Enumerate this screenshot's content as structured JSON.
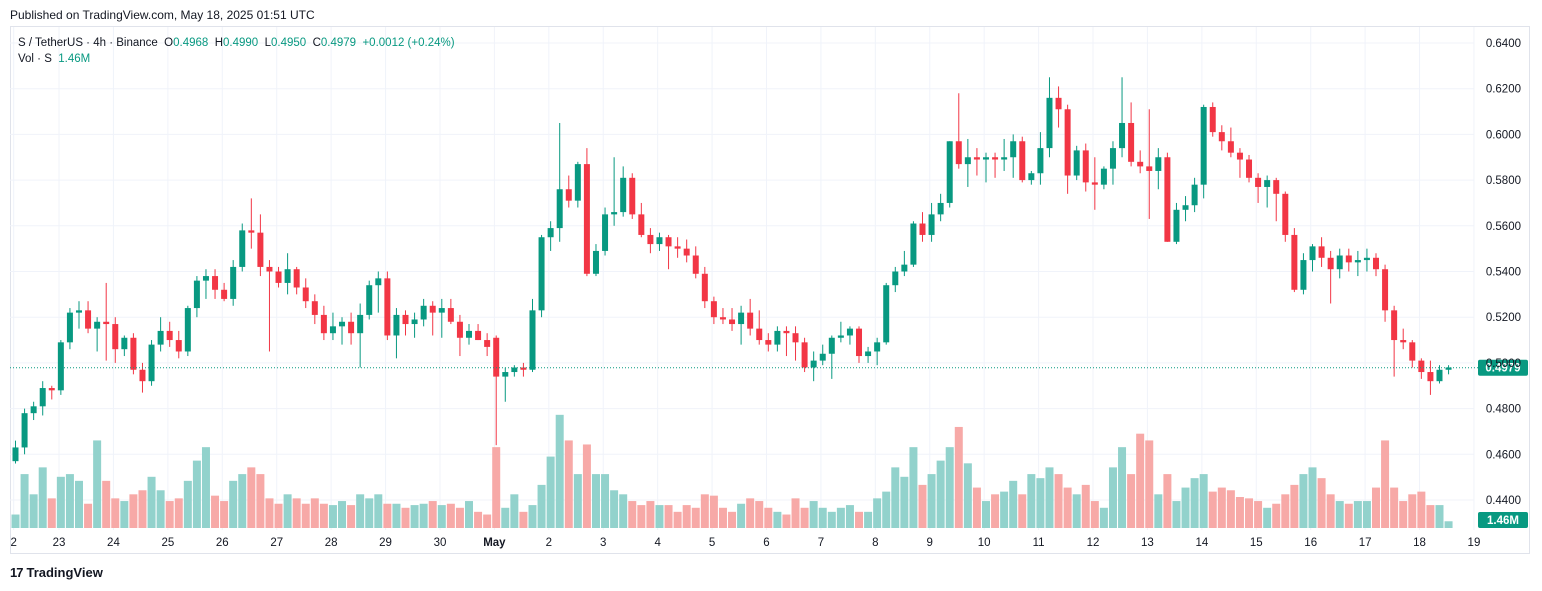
{
  "header": {
    "published": "Published on TradingView.com, May 18, 2025 01:51 UTC"
  },
  "legend": {
    "symbol": "S / TetherUS · 4h · Binance",
    "open_label": "O",
    "open": "0.4968",
    "high_label": "H",
    "high": "0.4990",
    "low_label": "L",
    "low": "0.4950",
    "close_label": "C",
    "close": "0.4979",
    "change": "+0.0012 (+0.24%)",
    "vol_label": "Vol · S",
    "vol_value": "1.46M"
  },
  "footer": {
    "brand": "TradingView",
    "logo_glyph": "17"
  },
  "colors": {
    "up": "#089981",
    "down": "#f23645",
    "vol_up": "#92d2cc",
    "vol_down": "#f7a9a7",
    "grid": "#f0f3fa"
  },
  "chart_data": {
    "type": "candlestick",
    "symbol": "S / TetherUS",
    "interval": "4h",
    "exchange": "Binance",
    "ylim": [
      0.4345,
      0.6445
    ],
    "y_ticks": [
      "0.6400",
      "0.6200",
      "0.6000",
      "0.5800",
      "0.5600",
      "0.5400",
      "0.5200",
      "0.5000",
      "0.4800",
      "0.4600",
      "0.4400"
    ],
    "x_ticks": [
      {
        "label": "2",
        "i": -0.2
      },
      {
        "label": "23",
        "i": 4.8
      },
      {
        "label": "24",
        "i": 10.8
      },
      {
        "label": "25",
        "i": 16.8
      },
      {
        "label": "26",
        "i": 22.8
      },
      {
        "label": "27",
        "i": 28.8
      },
      {
        "label": "28",
        "i": 34.8
      },
      {
        "label": "29",
        "i": 40.8
      },
      {
        "label": "30",
        "i": 46.8
      },
      {
        "label": "May",
        "i": 52.8
      },
      {
        "label": "2",
        "i": 58.8
      },
      {
        "label": "3",
        "i": 64.8
      },
      {
        "label": "4",
        "i": 70.8
      },
      {
        "label": "5",
        "i": 76.8
      },
      {
        "label": "6",
        "i": 82.8
      },
      {
        "label": "7",
        "i": 88.8
      },
      {
        "label": "8",
        "i": 94.8
      },
      {
        "label": "9",
        "i": 100.8
      },
      {
        "label": "10",
        "i": 106.8
      },
      {
        "label": "11",
        "i": 112.8
      },
      {
        "label": "12",
        "i": 118.8
      },
      {
        "label": "13",
        "i": 124.8
      },
      {
        "label": "14",
        "i": 130.8
      },
      {
        "label": "15",
        "i": 136.8
      },
      {
        "label": "16",
        "i": 142.8
      },
      {
        "label": "17",
        "i": 148.8
      },
      {
        "label": "18",
        "i": 154.8
      },
      {
        "label": "19",
        "i": 160.8
      }
    ],
    "current_price": "0.4979",
    "current_volume": "1.46M",
    "volume_max": 0.95,
    "candles": [
      [
        0.457,
        0.466,
        0.456,
        0.463,
        0.1
      ],
      [
        0.463,
        0.48,
        0.46,
        0.478,
        0.4
      ],
      [
        0.478,
        0.483,
        0.475,
        0.481,
        0.25
      ],
      [
        0.481,
        0.492,
        0.477,
        0.489,
        0.45
      ],
      [
        0.489,
        0.49,
        0.484,
        0.488,
        0.22
      ],
      [
        0.488,
        0.51,
        0.486,
        0.509,
        0.38
      ],
      [
        0.509,
        0.524,
        0.506,
        0.522,
        0.4
      ],
      [
        0.522,
        0.527,
        0.515,
        0.523,
        0.35
      ],
      [
        0.523,
        0.527,
        0.513,
        0.515,
        0.18
      ],
      [
        0.515,
        0.52,
        0.505,
        0.518,
        0.65
      ],
      [
        0.518,
        0.535,
        0.501,
        0.517,
        0.35
      ],
      [
        0.517,
        0.52,
        0.5,
        0.506,
        0.22
      ],
      [
        0.506,
        0.512,
        0.503,
        0.511,
        0.2
      ],
      [
        0.511,
        0.513,
        0.495,
        0.497,
        0.25
      ],
      [
        0.497,
        0.5,
        0.487,
        0.492,
        0.28
      ],
      [
        0.492,
        0.51,
        0.49,
        0.508,
        0.38
      ],
      [
        0.508,
        0.52,
        0.505,
        0.514,
        0.28
      ],
      [
        0.514,
        0.518,
        0.507,
        0.51,
        0.2
      ],
      [
        0.51,
        0.514,
        0.502,
        0.505,
        0.22
      ],
      [
        0.505,
        0.525,
        0.503,
        0.524,
        0.35
      ],
      [
        0.524,
        0.538,
        0.52,
        0.536,
        0.5
      ],
      [
        0.536,
        0.541,
        0.528,
        0.538,
        0.6
      ],
      [
        0.538,
        0.541,
        0.528,
        0.532,
        0.24
      ],
      [
        0.532,
        0.535,
        0.527,
        0.528,
        0.2
      ],
      [
        0.528,
        0.545,
        0.525,
        0.542,
        0.35
      ],
      [
        0.542,
        0.561,
        0.54,
        0.558,
        0.4
      ],
      [
        0.558,
        0.572,
        0.55,
        0.557,
        0.45
      ],
      [
        0.557,
        0.565,
        0.538,
        0.542,
        0.4
      ],
      [
        0.542,
        0.545,
        0.505,
        0.54,
        0.22
      ],
      [
        0.54,
        0.542,
        0.533,
        0.535,
        0.18
      ],
      [
        0.535,
        0.548,
        0.53,
        0.541,
        0.25
      ],
      [
        0.541,
        0.542,
        0.53,
        0.533,
        0.22
      ],
      [
        0.533,
        0.537,
        0.524,
        0.527,
        0.18
      ],
      [
        0.527,
        0.53,
        0.517,
        0.521,
        0.22
      ],
      [
        0.521,
        0.525,
        0.51,
        0.513,
        0.18
      ],
      [
        0.513,
        0.522,
        0.51,
        0.516,
        0.17
      ],
      [
        0.516,
        0.52,
        0.508,
        0.518,
        0.2
      ],
      [
        0.518,
        0.522,
        0.508,
        0.513,
        0.17
      ],
      [
        0.513,
        0.526,
        0.498,
        0.521,
        0.25
      ],
      [
        0.521,
        0.536,
        0.519,
        0.534,
        0.22
      ],
      [
        0.534,
        0.54,
        0.522,
        0.537,
        0.25
      ],
      [
        0.537,
        0.54,
        0.51,
        0.512,
        0.18
      ],
      [
        0.512,
        0.524,
        0.502,
        0.521,
        0.18
      ],
      [
        0.521,
        0.523,
        0.512,
        0.517,
        0.15
      ],
      [
        0.517,
        0.522,
        0.511,
        0.519,
        0.17
      ],
      [
        0.519,
        0.528,
        0.516,
        0.525,
        0.18
      ],
      [
        0.525,
        0.527,
        0.512,
        0.522,
        0.2
      ],
      [
        0.522,
        0.528,
        0.511,
        0.524,
        0.17
      ],
      [
        0.524,
        0.528,
        0.517,
        0.518,
        0.18
      ],
      [
        0.518,
        0.521,
        0.503,
        0.511,
        0.15
      ],
      [
        0.511,
        0.517,
        0.508,
        0.514,
        0.2
      ],
      [
        0.514,
        0.517,
        0.51,
        0.51,
        0.12
      ],
      [
        0.51,
        0.513,
        0.503,
        0.507,
        0.1
      ],
      [
        0.511,
        0.512,
        0.464,
        0.494,
        0.6
      ],
      [
        0.494,
        0.498,
        0.483,
        0.496,
        0.15
      ],
      [
        0.496,
        0.499,
        0.494,
        0.498,
        0.25
      ],
      [
        0.498,
        0.5,
        0.494,
        0.497,
        0.12
      ],
      [
        0.497,
        0.528,
        0.496,
        0.523,
        0.17
      ],
      [
        0.523,
        0.556,
        0.52,
        0.555,
        0.32
      ],
      [
        0.555,
        0.562,
        0.549,
        0.559,
        0.53
      ],
      [
        0.559,
        0.605,
        0.553,
        0.576,
        0.84
      ],
      [
        0.576,
        0.582,
        0.568,
        0.571,
        0.65
      ],
      [
        0.571,
        0.588,
        0.568,
        0.587,
        0.4
      ],
      [
        0.587,
        0.594,
        0.538,
        0.539,
        0.62
      ],
      [
        0.539,
        0.552,
        0.538,
        0.549,
        0.4
      ],
      [
        0.549,
        0.568,
        0.547,
        0.565,
        0.4
      ],
      [
        0.565,
        0.59,
        0.56,
        0.566,
        0.28
      ],
      [
        0.566,
        0.586,
        0.564,
        0.581,
        0.25
      ],
      [
        0.581,
        0.583,
        0.563,
        0.565,
        0.2
      ],
      [
        0.565,
        0.57,
        0.555,
        0.556,
        0.17
      ],
      [
        0.556,
        0.559,
        0.548,
        0.552,
        0.2
      ],
      [
        0.552,
        0.557,
        0.549,
        0.555,
        0.17
      ],
      [
        0.555,
        0.556,
        0.541,
        0.551,
        0.17
      ],
      [
        0.551,
        0.555,
        0.546,
        0.55,
        0.12
      ],
      [
        0.55,
        0.554,
        0.544,
        0.547,
        0.17
      ],
      [
        0.547,
        0.551,
        0.537,
        0.539,
        0.15
      ],
      [
        0.539,
        0.542,
        0.524,
        0.527,
        0.25
      ],
      [
        0.527,
        0.529,
        0.517,
        0.52,
        0.24
      ],
      [
        0.52,
        0.524,
        0.517,
        0.519,
        0.15
      ],
      [
        0.519,
        0.524,
        0.514,
        0.517,
        0.12
      ],
      [
        0.517,
        0.525,
        0.508,
        0.522,
        0.18
      ],
      [
        0.522,
        0.528,
        0.512,
        0.515,
        0.22
      ],
      [
        0.515,
        0.523,
        0.508,
        0.51,
        0.2
      ],
      [
        0.51,
        0.513,
        0.505,
        0.508,
        0.15
      ],
      [
        0.508,
        0.516,
        0.505,
        0.514,
        0.12
      ],
      [
        0.514,
        0.516,
        0.503,
        0.513,
        0.1
      ],
      [
        0.513,
        0.516,
        0.501,
        0.509,
        0.22
      ],
      [
        0.509,
        0.511,
        0.496,
        0.498,
        0.15
      ],
      [
        0.498,
        0.505,
        0.492,
        0.501,
        0.2
      ],
      [
        0.501,
        0.508,
        0.499,
        0.504,
        0.15
      ],
      [
        0.504,
        0.512,
        0.493,
        0.511,
        0.12
      ],
      [
        0.511,
        0.518,
        0.509,
        0.512,
        0.15
      ],
      [
        0.512,
        0.516,
        0.508,
        0.515,
        0.17
      ],
      [
        0.515,
        0.516,
        0.5,
        0.503,
        0.12
      ],
      [
        0.503,
        0.507,
        0.5,
        0.505,
        0.12
      ],
      [
        0.505,
        0.511,
        0.499,
        0.509,
        0.22
      ],
      [
        0.509,
        0.535,
        0.508,
        0.534,
        0.27
      ],
      [
        0.534,
        0.542,
        0.531,
        0.54,
        0.45
      ],
      [
        0.54,
        0.549,
        0.538,
        0.543,
        0.38
      ],
      [
        0.543,
        0.562,
        0.542,
        0.561,
        0.6
      ],
      [
        0.561,
        0.566,
        0.553,
        0.556,
        0.32
      ],
      [
        0.556,
        0.57,
        0.553,
        0.565,
        0.4
      ],
      [
        0.565,
        0.574,
        0.562,
        0.57,
        0.5
      ],
      [
        0.57,
        0.597,
        0.568,
        0.597,
        0.6
      ],
      [
        0.597,
        0.618,
        0.585,
        0.587,
        0.75
      ],
      [
        0.587,
        0.598,
        0.577,
        0.59,
        0.48
      ],
      [
        0.59,
        0.594,
        0.582,
        0.589,
        0.3
      ],
      [
        0.589,
        0.592,
        0.579,
        0.59,
        0.2
      ],
      [
        0.59,
        0.592,
        0.581,
        0.589,
        0.25
      ],
      [
        0.589,
        0.598,
        0.584,
        0.59,
        0.27
      ],
      [
        0.59,
        0.6,
        0.581,
        0.597,
        0.35
      ],
      [
        0.597,
        0.599,
        0.579,
        0.58,
        0.25
      ],
      [
        0.58,
        0.584,
        0.578,
        0.583,
        0.4
      ],
      [
        0.583,
        0.601,
        0.578,
        0.594,
        0.37
      ],
      [
        0.594,
        0.625,
        0.59,
        0.616,
        0.45
      ],
      [
        0.616,
        0.621,
        0.603,
        0.611,
        0.4
      ],
      [
        0.611,
        0.613,
        0.574,
        0.582,
        0.3
      ],
      [
        0.582,
        0.595,
        0.58,
        0.593,
        0.25
      ],
      [
        0.593,
        0.596,
        0.575,
        0.579,
        0.32
      ],
      [
        0.579,
        0.59,
        0.567,
        0.578,
        0.2
      ],
      [
        0.578,
        0.586,
        0.576,
        0.585,
        0.15
      ],
      [
        0.585,
        0.597,
        0.578,
        0.594,
        0.45
      ],
      [
        0.594,
        0.625,
        0.59,
        0.605,
        0.6
      ],
      [
        0.605,
        0.614,
        0.586,
        0.588,
        0.4
      ],
      [
        0.588,
        0.593,
        0.583,
        0.586,
        0.7
      ],
      [
        0.586,
        0.611,
        0.563,
        0.584,
        0.65
      ],
      [
        0.584,
        0.594,
        0.576,
        0.59,
        0.25
      ],
      [
        0.59,
        0.592,
        0.553,
        0.553,
        0.4
      ],
      [
        0.553,
        0.57,
        0.552,
        0.567,
        0.2
      ],
      [
        0.567,
        0.573,
        0.562,
        0.569,
        0.3
      ],
      [
        0.569,
        0.581,
        0.566,
        0.578,
        0.37
      ],
      [
        0.578,
        0.613,
        0.572,
        0.612,
        0.4
      ],
      [
        0.612,
        0.614,
        0.599,
        0.601,
        0.27
      ],
      [
        0.601,
        0.604,
        0.593,
        0.597,
        0.3
      ],
      [
        0.597,
        0.603,
        0.59,
        0.592,
        0.28
      ],
      [
        0.592,
        0.594,
        0.581,
        0.589,
        0.23
      ],
      [
        0.589,
        0.591,
        0.579,
        0.581,
        0.22
      ],
      [
        0.581,
        0.583,
        0.57,
        0.577,
        0.2
      ],
      [
        0.577,
        0.582,
        0.568,
        0.58,
        0.15
      ],
      [
        0.58,
        0.581,
        0.562,
        0.574,
        0.18
      ],
      [
        0.574,
        0.575,
        0.553,
        0.556,
        0.25
      ],
      [
        0.556,
        0.559,
        0.531,
        0.532,
        0.32
      ],
      [
        0.532,
        0.548,
        0.53,
        0.545,
        0.4
      ],
      [
        0.545,
        0.552,
        0.54,
        0.551,
        0.45
      ],
      [
        0.551,
        0.555,
        0.542,
        0.546,
        0.37
      ],
      [
        0.546,
        0.549,
        0.526,
        0.541,
        0.25
      ],
      [
        0.541,
        0.55,
        0.537,
        0.547,
        0.2
      ],
      [
        0.547,
        0.55,
        0.54,
        0.544,
        0.18
      ],
      [
        0.544,
        0.549,
        0.538,
        0.545,
        0.2
      ],
      [
        0.545,
        0.55,
        0.54,
        0.546,
        0.2
      ],
      [
        0.546,
        0.548,
        0.538,
        0.541,
        0.3
      ],
      [
        0.541,
        0.543,
        0.518,
        0.523,
        0.65
      ],
      [
        0.523,
        0.525,
        0.494,
        0.51,
        0.3
      ],
      [
        0.51,
        0.515,
        0.506,
        0.509,
        0.2
      ],
      [
        0.509,
        0.51,
        0.498,
        0.501,
        0.25
      ],
      [
        0.501,
        0.502,
        0.493,
        0.496,
        0.27
      ],
      [
        0.496,
        0.501,
        0.486,
        0.492,
        0.17
      ],
      [
        0.492,
        0.499,
        0.491,
        0.497,
        0.17
      ],
      [
        0.497,
        0.499,
        0.495,
        0.498,
        0.05
      ]
    ]
  }
}
